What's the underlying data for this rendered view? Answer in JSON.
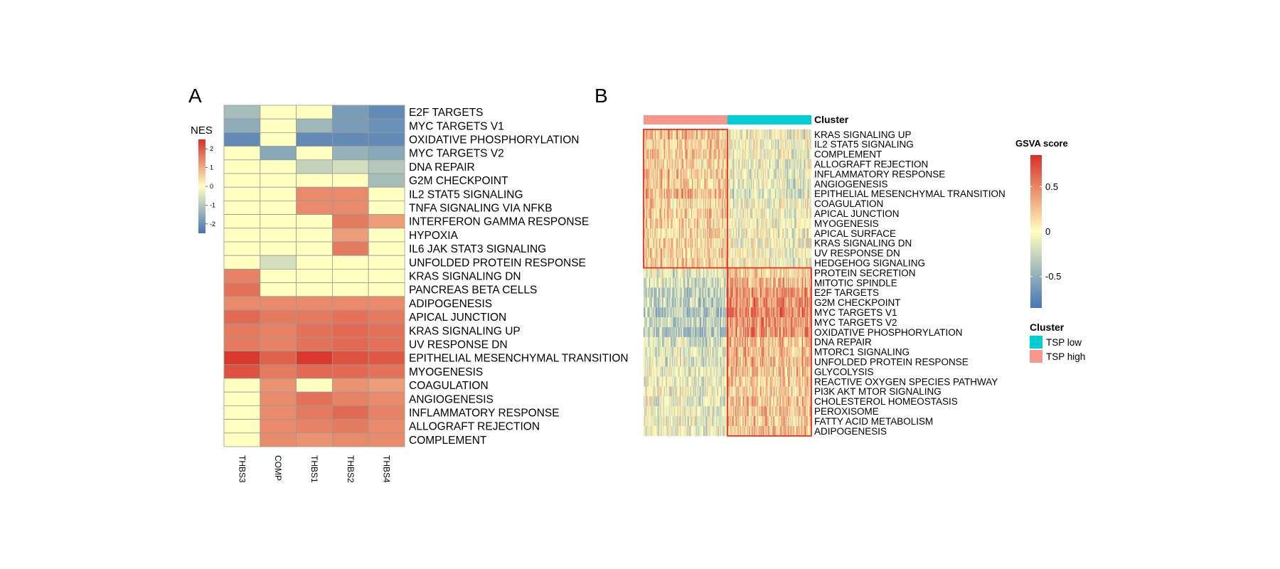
{
  "chart_data": [
    {
      "type": "heatmap",
      "panel_label": "A",
      "legend_title": "NES",
      "legend_ticks": [
        2,
        1,
        0,
        -1,
        -2
      ],
      "value_range": [
        -2.5,
        2.5
      ],
      "color_scale": [
        "#4575B4",
        "#FFFFBF",
        "#D73027"
      ],
      "columns": [
        "THBS3",
        "COMP",
        "THBS1",
        "THBS2",
        "THBS4"
      ],
      "rows": [
        "E2F TARGETS",
        "MYC TARGETS V1",
        "OXIDATIVE PHOSPHORYLATION",
        "MYC TARGETS V2",
        "DNA REPAIR",
        "G2M CHECKPOINT",
        "IL2 STAT5 SIGNALING",
        "TNFA SIGNALING VIA NFKB",
        "INTERFERON GAMMA RESPONSE",
        "HYPOXIA",
        "IL6 JAK STAT3 SIGNALING",
        "UNFOLDED PROTEIN RESPONSE",
        "KRAS SIGNALING DN",
        "PANCREAS BETA CELLS",
        "ADIPOGENESIS",
        "APICAL JUNCTION",
        "KRAS SIGNALING UP",
        "UV RESPONSE DN",
        "EPITHELIAL MESENCHYMAL TRANSITION",
        "MYOGENESIS",
        "COAGULATION",
        "ANGIOGENESIS",
        "INFLAMMATORY RESPONSE",
        "ALLOGRAFT REJECTION",
        "COMPLEMENT"
      ],
      "values": [
        [
          -1.2,
          0,
          0,
          -1.8,
          -2.1
        ],
        [
          -1.5,
          0,
          -1.3,
          -1.8,
          -2.0
        ],
        [
          -2.1,
          0,
          -2.1,
          -2.1,
          -2.1
        ],
        [
          0,
          -1.6,
          0,
          -1.4,
          -1.6
        ],
        [
          0,
          0,
          -0.8,
          -0.6,
          -1.0
        ],
        [
          0,
          0,
          0,
          0,
          -1.2
        ],
        [
          0,
          0,
          1.4,
          1.4,
          0
        ],
        [
          0,
          0,
          1.4,
          1.4,
          0
        ],
        [
          0,
          0,
          0,
          1.6,
          1.2
        ],
        [
          0,
          0,
          0,
          1.2,
          0
        ],
        [
          0,
          0,
          0,
          1.6,
          0
        ],
        [
          0,
          -0.6,
          0,
          0,
          0
        ],
        [
          1.5,
          0,
          0,
          0,
          0
        ],
        [
          1.7,
          0,
          0,
          0,
          0
        ],
        [
          1.4,
          1.4,
          1.4,
          1.4,
          1.4
        ],
        [
          1.8,
          1.6,
          1.6,
          1.7,
          1.6
        ],
        [
          1.6,
          1.5,
          1.7,
          1.8,
          1.7
        ],
        [
          1.6,
          1.5,
          1.7,
          1.8,
          1.7
        ],
        [
          2.4,
          1.9,
          2.4,
          2.1,
          2.0
        ],
        [
          2.1,
          1.6,
          1.8,
          1.8,
          1.7
        ],
        [
          0,
          1.3,
          0,
          1.3,
          1.2
        ],
        [
          0,
          1.4,
          1.7,
          1.5,
          1.4
        ],
        [
          0,
          1.4,
          1.6,
          1.8,
          1.5
        ],
        [
          0,
          1.4,
          1.5,
          1.6,
          1.4
        ],
        [
          0,
          1.4,
          1.3,
          1.4,
          1.4
        ]
      ]
    },
    {
      "type": "heatmap",
      "panel_label": "B",
      "legend_title": "GSVA score",
      "legend_ticks": [
        0.5,
        0,
        -0.5
      ],
      "value_range": [
        -0.85,
        0.85
      ],
      "color_scale": [
        "#4575B4",
        "#FFFFBF",
        "#D73027"
      ],
      "annotation_label": "Cluster",
      "cluster_legend_title": "Cluster",
      "clusters": [
        {
          "name": "TSP low",
          "color": "#00CDD4"
        },
        {
          "name": "TSP high",
          "color": "#F8978E"
        }
      ],
      "column_groups": [
        "TSP high",
        "TSP low"
      ],
      "rows": [
        "KRAS SIGNALING UP",
        "IL2 STAT5 SIGNALING",
        "COMPLEMENT",
        "ALLOGRAFT REJECTION",
        "INFLAMMATORY RESPONSE",
        "ANGIOGENESIS",
        "EPITHELIAL MESENCHYMAL TRANSITION",
        "COAGULATION",
        "APICAL JUNCTION",
        "MYOGENESIS",
        "APICAL SURFACE",
        "KRAS SIGNALING DN",
        "UV RESPONSE DN",
        "HEDGEHOG SIGNALING",
        "PROTEIN SECRETION",
        "MITOTIC SPINDLE",
        "E2F TARGETS",
        "G2M CHECKPOINT",
        "MYC TARGETS V1",
        "MYC TARGETS V2",
        "OXIDATIVE PHOSPHORYLATION",
        "DNA REPAIR",
        "MTORC1 SIGNALING",
        "UNFOLDED PROTEIN RESPONSE",
        "GLYCOLYSIS",
        "REACTIVE OXYGEN SPECIES PATHWAY",
        "PI3K AKT MTOR SIGNALING",
        "CHOLESTEROL HOMEOSTASIS",
        "PEROXISOME",
        "FATTY ACID METABOLISM",
        "ADIPOGENESIS"
      ],
      "mean_scores": [
        [
          0.25,
          -0.05
        ],
        [
          0.2,
          -0.05
        ],
        [
          0.2,
          -0.05
        ],
        [
          0.2,
          -0.1
        ],
        [
          0.2,
          -0.1
        ],
        [
          0.2,
          -0.1
        ],
        [
          0.3,
          -0.2
        ],
        [
          0.15,
          -0.05
        ],
        [
          0.2,
          -0.05
        ],
        [
          0.15,
          -0.05
        ],
        [
          0.15,
          -0.05
        ],
        [
          0.15,
          -0.05
        ],
        [
          0.15,
          -0.05
        ],
        [
          0.15,
          -0.05
        ],
        [
          -0.15,
          0.2
        ],
        [
          -0.2,
          0.3
        ],
        [
          -0.3,
          0.45
        ],
        [
          -0.3,
          0.45
        ],
        [
          -0.35,
          0.5
        ],
        [
          -0.3,
          0.45
        ],
        [
          -0.35,
          0.45
        ],
        [
          -0.2,
          0.3
        ],
        [
          -0.15,
          0.3
        ],
        [
          -0.15,
          0.3
        ],
        [
          -0.1,
          0.25
        ],
        [
          -0.1,
          0.2
        ],
        [
          -0.1,
          0.2
        ],
        [
          -0.1,
          0.25
        ],
        [
          -0.1,
          0.25
        ],
        [
          -0.1,
          0.25
        ],
        [
          -0.1,
          0.25
        ]
      ]
    }
  ]
}
